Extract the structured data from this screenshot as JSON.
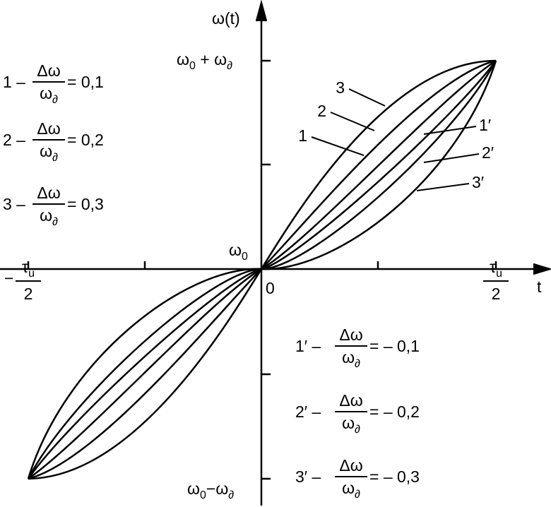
{
  "axes": {
    "y_label": "ω(t)",
    "x_label": "t",
    "origin": "0",
    "y_max": {
      "a": "ω",
      "a_sub": "0",
      "op": " + ",
      "b": "ω",
      "b_sub": "∂"
    },
    "y_mid": {
      "a": "ω",
      "a_sub": "0"
    },
    "y_min": {
      "a": "ω",
      "a_sub": "0",
      "op": "−",
      "b": "ω",
      "b_sub": "∂"
    },
    "x_min": {
      "sign": "−",
      "num": "τ",
      "num_sub": "u",
      "den": "2"
    },
    "x_max": {
      "num": "τ",
      "num_sub": "u",
      "den": "2"
    }
  },
  "curve_labels": [
    "1",
    "2",
    "3",
    "1′",
    "2′",
    "3′"
  ],
  "legend": [
    {
      "label": "1 –",
      "num": "Δω",
      "den": "ω",
      "den_sub": "∂",
      "value": "= 0,1"
    },
    {
      "label": "2 –",
      "num": "Δω",
      "den": "ω",
      "den_sub": "∂",
      "value": "= 0,2"
    },
    {
      "label": "3 –",
      "num": "Δω",
      "den": "ω",
      "den_sub": "∂",
      "value": "= 0,3"
    },
    {
      "label": "1′ –",
      "num": "Δω",
      "den": "ω",
      "den_sub": "∂",
      "value": "= – 0,1"
    },
    {
      "label": "2′ –",
      "num": "Δω",
      "den": "ω",
      "den_sub": "∂",
      "value": "= – 0,2"
    },
    {
      "label": "3′ –",
      "num": "Δω",
      "den": "ω",
      "den_sub": "∂",
      "value": "= – 0,3"
    }
  ]
}
